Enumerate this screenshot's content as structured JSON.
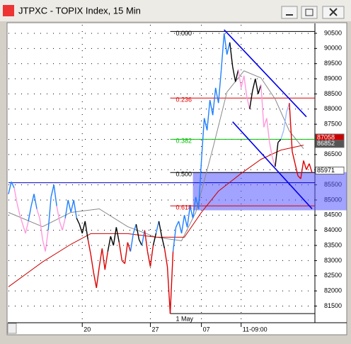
{
  "window": {
    "title": "JTPXC - TOPIX Index, 15 Min"
  },
  "chart_data": {
    "type": "line",
    "xlim": [
      0,
      108
    ],
    "ylim": [
      80950,
      90780
    ],
    "yticks": [
      81500,
      82000,
      82500,
      83000,
      83500,
      84000,
      84500,
      85000,
      85500,
      86000,
      86500,
      87000,
      87500,
      88000,
      88500,
      89000,
      89500,
      90000,
      90500
    ],
    "xticks": [
      {
        "value": 26,
        "label": "20"
      },
      {
        "value": 50,
        "label": "27"
      },
      {
        "value": 68,
        "label": "07"
      },
      {
        "value": 82,
        "label": "11-09:00"
      }
    ],
    "grid": true,
    "price": {
      "values": [
        85200,
        85600,
        85400,
        84900,
        84500,
        84200,
        83900,
        84300,
        84800,
        85200,
        84700,
        84400,
        83700,
        83300,
        84000,
        85100,
        85500,
        84800,
        84300,
        84000,
        84400,
        85000,
        84600,
        85000,
        84400,
        84200,
        83900,
        84300,
        83700,
        83200,
        82600,
        82100,
        82800,
        83400,
        82700,
        83300,
        83800,
        83500,
        84100,
        83600,
        83000,
        82900,
        83600,
        83300,
        83900,
        84200,
        83700,
        83500,
        84000,
        83300,
        82800,
        83500,
        83900,
        84300,
        83800,
        83400,
        82800,
        81250,
        83300,
        84100,
        84300,
        83900,
        84500,
        84100,
        84800,
        84400,
        85100,
        84700,
        86300,
        87700,
        87300,
        88300,
        87800,
        88700,
        88200,
        89300,
        90500,
        89800,
        90200,
        89400,
        88900,
        89300,
        88700,
        89100,
        88400,
        88000,
        88600,
        89000,
        88500,
        88800,
        87400,
        87700,
        86900,
        86400,
        86100,
        86900,
        87000,
        87300,
        87900,
        88200,
        86600,
        86200,
        85800,
        85700,
        86300,
        86000,
        86200,
        85900
      ],
      "point_colors": [
        "#ff99dd",
        "#1e7fff",
        "#1e7fff",
        "#ff99dd",
        "#ff99dd",
        "#ff99dd",
        "#ff99dd",
        "#ff99dd",
        "#1e7fff",
        "#1e7fff",
        "#1e7fff",
        "#ff99dd",
        "#ff99dd",
        "#ff99dd",
        "#ff99dd",
        "#1e7fff",
        "#1e7fff",
        "#1e7fff",
        "#ff99dd",
        "#ff99dd",
        "#ff99dd",
        "#1e7fff",
        "#1e7fff",
        "#1e7fff",
        "#1e7fff",
        "#000000",
        "#000000",
        "#000000",
        "#000000",
        "#dd0000",
        "#dd0000",
        "#dd0000",
        "#dd0000",
        "#dd0000",
        "#dd0000",
        "#dd0000",
        "#000000",
        "#000000",
        "#000000",
        "#000000",
        "#dd0000",
        "#dd0000",
        "#dd0000",
        "#dd0000",
        "#1e7fff",
        "#1e7fff",
        "#000000",
        "#000000",
        "#1e7fff",
        "#dd0000",
        "#dd0000",
        "#dd0000",
        "#000000",
        "#1e7fff",
        "#000000",
        "#000000",
        "#dd0000",
        "#dd0000",
        "#dd0000",
        "#1e7fff",
        "#1e7fff",
        "#1e7fff",
        "#1e7fff",
        "#1e7fff",
        "#1e7fff",
        "#1e7fff",
        "#1e7fff",
        "#1e7fff",
        "#1e7fff",
        "#1e7fff",
        "#1e7fff",
        "#1e7fff",
        "#1e7fff",
        "#1e7fff",
        "#1e7fff",
        "#1e7fff",
        "#1e7fff",
        "#1e7fff",
        "#1e7fff",
        "#000000",
        "#000000",
        "#000000",
        "#ff99dd",
        "#ff99dd",
        "#ff99dd",
        "#ff99dd",
        "#000000",
        "#000000",
        "#000000",
        "#000000",
        "#ff99dd",
        "#ff99dd",
        "#ff99dd",
        "#ff99dd",
        "#ff99dd",
        "#000000",
        "#000000",
        "#99bbff",
        "#99bbff",
        "#99bbff",
        "#dd0000",
        "#dd0000",
        "#dd0000",
        "#dd0000",
        "#dd0000",
        "#dd0000",
        "#dd0000",
        "#dd0000"
      ]
    },
    "series": [
      {
        "color": "#888888",
        "x": [
          0,
          12,
          22,
          32,
          42,
          52,
          61,
          66,
          72,
          77,
          83,
          89,
          94,
          99,
          104
        ],
        "values": [
          84590,
          84120,
          84590,
          84707,
          84120,
          83772,
          83655,
          84590,
          86692,
          88561,
          89262,
          89028,
          88328,
          87276,
          86692
        ]
      },
      {
        "color": "#cc0000",
        "x": [
          0,
          12,
          22,
          29,
          42,
          52,
          62,
          68,
          74,
          82,
          89,
          96,
          104
        ],
        "values": [
          82137,
          82955,
          83539,
          83889,
          83889,
          83772,
          83772,
          84590,
          85291,
          85875,
          86342,
          86646,
          86809
        ]
      }
    ],
    "trend_lines": [
      {
        "color": "#0000ee",
        "x": [
          76,
          105
        ],
        "values": [
          90617,
          87744
        ]
      },
      {
        "color": "#0000ee",
        "x": [
          79,
          107
        ],
        "values": [
          87580,
          84707
        ]
      }
    ],
    "hline": {
      "value": 85570,
      "color": "#0000cc"
    },
    "band": {
      "from": 65,
      "low": 84660,
      "high": 85920,
      "color": "#5555ff"
    },
    "fib": {
      "anchor_x": 57,
      "high": 90560,
      "low": 81250,
      "levels": [
        {
          "value": 0,
          "label": "0.000"
        },
        0.236,
        0.382,
        {
          "value": 0.5,
          "label": "0.500"
        },
        0.618
      ],
      "colors": [
        "#000000",
        "#dd0000",
        "#00bb00",
        "#000000",
        "#dd0000"
      ]
    },
    "annotation": "1 May",
    "price_labels": [
      87058,
      86852,
      85971
    ],
    "price_label_colors": [
      "#cc0000",
      "#555555",
      "#ffffff"
    ]
  }
}
